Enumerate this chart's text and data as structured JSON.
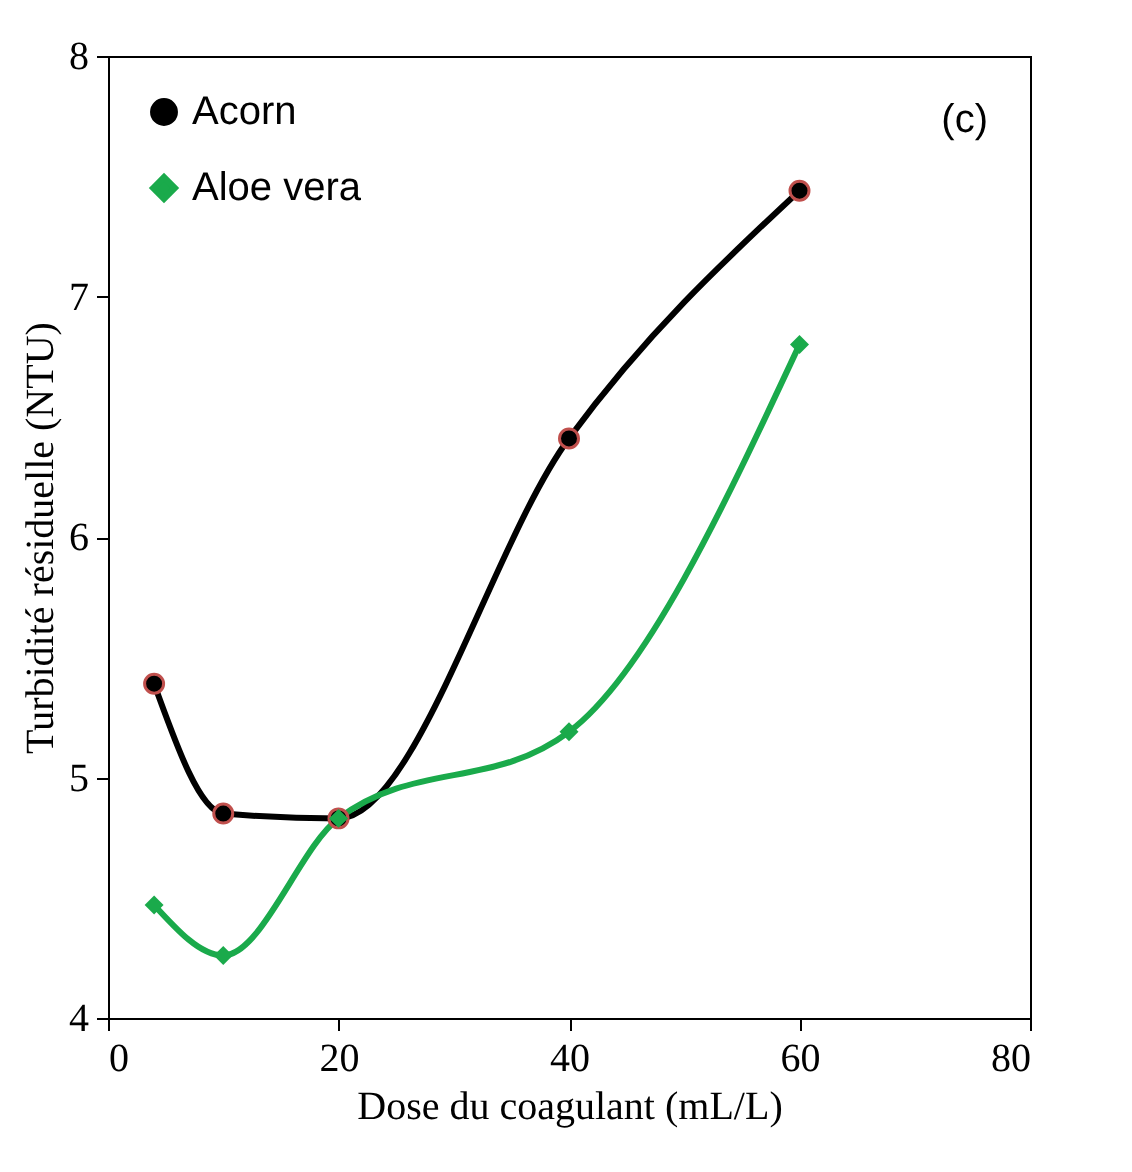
{
  "chart_data": {
    "type": "line",
    "xlabel": "Dose du coagulant (mL/L)",
    "ylabel": "Turbidité résiduelle (NTU)",
    "x": [
      4,
      10,
      20,
      40,
      60
    ],
    "series": [
      {
        "name": "Acorn",
        "color": "#000000",
        "marker": "circle",
        "values": [
          5.39,
          4.85,
          4.83,
          6.41,
          7.44
        ]
      },
      {
        "name": "Aloe vera",
        "color": "#1aaa4b",
        "marker": "diamond",
        "values": [
          4.47,
          4.26,
          4.83,
          5.19,
          6.8
        ]
      }
    ],
    "xlim": [
      0,
      80
    ],
    "xticks": [
      0,
      20,
      40,
      60,
      80
    ],
    "ylim": [
      4,
      8
    ],
    "yticks": [
      4,
      5,
      6,
      7,
      8
    ],
    "grid": false,
    "legend": "top left",
    "annotations": [
      "(c)"
    ]
  }
}
